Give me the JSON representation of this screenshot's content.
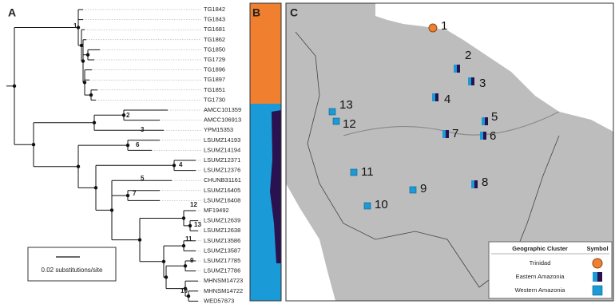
{
  "panels": {
    "a": "A",
    "b": "B",
    "c": "C"
  },
  "tree": {
    "tips": [
      "TG1842",
      "TG1843",
      "TG1681",
      "TG1862",
      "TG1850",
      "TG1729",
      "TG1896",
      "TG1897",
      "TG1851",
      "TG1730",
      "AMCC101359",
      "AMCC106913",
      "YPM15353",
      "LSUMZ14193",
      "LSUMZ14194",
      "LSUMZ12371",
      "LSUMZ12376",
      "CHUNB31161",
      "LSUMZ16405",
      "LSUMZ16408",
      "MF19492",
      "LSUMZ12639",
      "LSUMZ12638",
      "LSUMZ13586",
      "LSUMZ13587",
      "LSUMZ17785",
      "LSUMZ17786",
      "MHNSM14723",
      "MHNSM14722",
      "WED57873"
    ],
    "node_labels": [
      "1",
      "2",
      "3",
      "6",
      "4",
      "5",
      "7",
      "12",
      "13",
      "11",
      "9",
      "10"
    ],
    "scale_bar": "0.02 substitutions/site"
  },
  "map": {
    "sites": [
      "1",
      "2",
      "3",
      "4",
      "5",
      "6",
      "7",
      "8",
      "9",
      "10",
      "11",
      "12",
      "13"
    ],
    "legend": {
      "header": [
        "Geographic Cluster",
        "Symbol"
      ],
      "rows": [
        "Trinidad",
        "Eastern Amazonia",
        "Western Amazonia"
      ]
    }
  }
}
